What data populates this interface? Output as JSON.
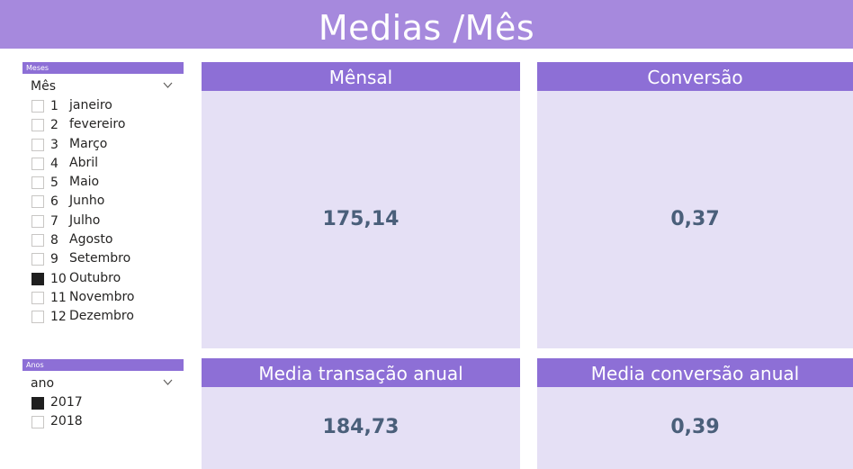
{
  "header": {
    "title": "Medias /Mês"
  },
  "slicer_meses": {
    "bar_label": "Meses",
    "field": "Mês",
    "items": [
      {
        "num": "1",
        "label": "janeiro",
        "checked": false
      },
      {
        "num": "2",
        "label": "fevereiro",
        "checked": false
      },
      {
        "num": "3",
        "label": "Março",
        "checked": false
      },
      {
        "num": "4",
        "label": "Abril",
        "checked": false
      },
      {
        "num": "5",
        "label": "Maio",
        "checked": false
      },
      {
        "num": "6",
        "label": "Junho",
        "checked": false
      },
      {
        "num": "7",
        "label": "Julho",
        "checked": false
      },
      {
        "num": "8",
        "label": "Agosto",
        "checked": false
      },
      {
        "num": "9",
        "label": "Setembro",
        "checked": false
      },
      {
        "num": "10",
        "label": "Outubro",
        "checked": true
      },
      {
        "num": "11",
        "label": "Novembro",
        "checked": false
      },
      {
        "num": "12",
        "label": "Dezembro",
        "checked": false
      }
    ]
  },
  "slicer_anos": {
    "bar_label": "Anos",
    "field": "ano",
    "items": [
      {
        "label": "2017",
        "checked": true
      },
      {
        "label": "2018",
        "checked": false
      }
    ]
  },
  "cards": {
    "mensal": {
      "title": "Mênsal",
      "value": "175,14"
    },
    "conversao": {
      "title": "Conversão",
      "value": "0,37"
    },
    "transacao_anual": {
      "title": "Media transação anual",
      "value": "184,73"
    },
    "conversao_anual": {
      "title": "Media conversão anual",
      "value": "0,39"
    }
  },
  "colors": {
    "header": "#a689dd",
    "accent": "#8d6fd6",
    "card_bg": "#e5e0f5",
    "value_text": "#4a5f7a"
  }
}
